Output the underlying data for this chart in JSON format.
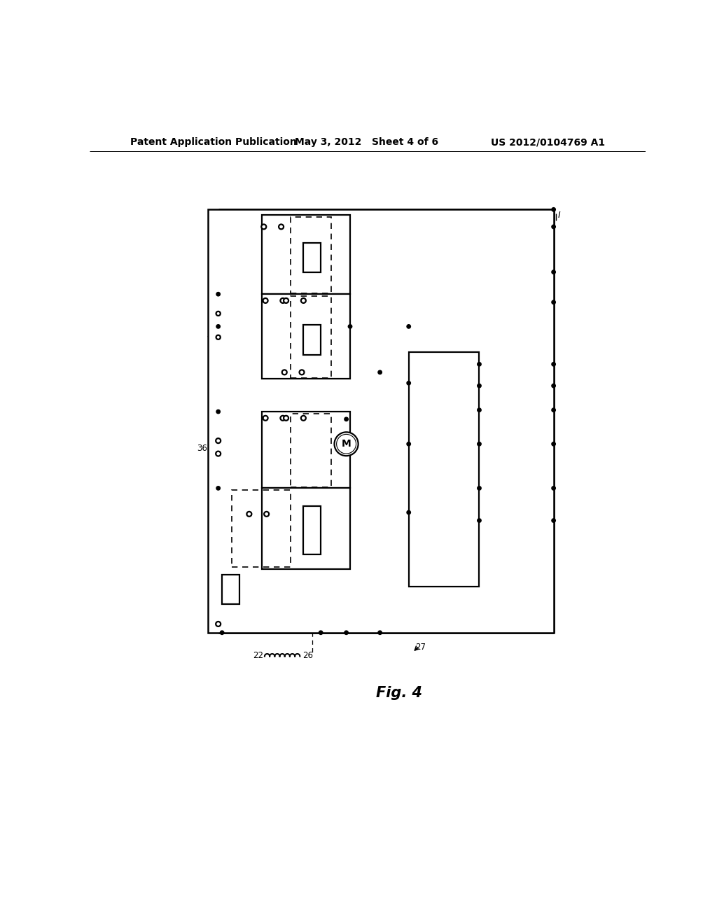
{
  "header_left": "Patent Application Publication",
  "header_center": "May 3, 2012   Sheet 4 of 6",
  "header_right": "US 2012/0104769 A1",
  "fig_label": "Fig. 4",
  "bg": "#ffffff",
  "lc": "#000000"
}
